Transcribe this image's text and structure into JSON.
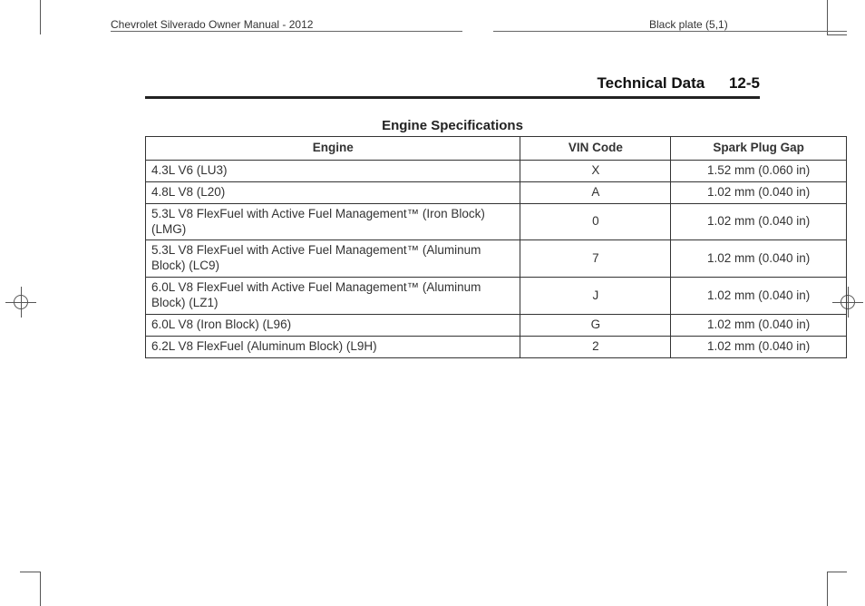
{
  "header": {
    "left": "Chevrolet Silverado Owner Manual - 2012",
    "right": "Black plate (5,1)"
  },
  "section": {
    "title": "Technical Data",
    "page_num": "12-5"
  },
  "table": {
    "title": "Engine Specifications",
    "columns": [
      "Engine",
      "VIN Code",
      "Spark Plug Gap"
    ],
    "rows": [
      {
        "engine": "4.3L V6 (LU3)",
        "vin": "X",
        "gap": "1.52 mm (0.060 in)"
      },
      {
        "engine": "4.8L V8 (L20)",
        "vin": "A",
        "gap": "1.02 mm (0.040 in)"
      },
      {
        "engine": "5.3L V8 FlexFuel with Active Fuel Management™ (Iron Block) (LMG)",
        "vin": "0",
        "gap": "1.02 mm (0.040 in)"
      },
      {
        "engine": "5.3L V8 FlexFuel with Active Fuel Management™ (Aluminum Block) (LC9)",
        "vin": "7",
        "gap": "1.02 mm (0.040 in)"
      },
      {
        "engine": "6.0L V8 FlexFuel with Active Fuel Management™ (Aluminum Block) (LZ1)",
        "vin": "J",
        "gap": "1.02 mm (0.040 in)"
      },
      {
        "engine": "6.0L V8 (Iron Block) (L96)",
        "vin": "G",
        "gap": "1.02 mm (0.040 in)"
      },
      {
        "engine": "6.2L V8 FlexFuel (Aluminum Block) (L9H)",
        "vin": "2",
        "gap": "1.02 mm (0.040 in)"
      }
    ]
  }
}
